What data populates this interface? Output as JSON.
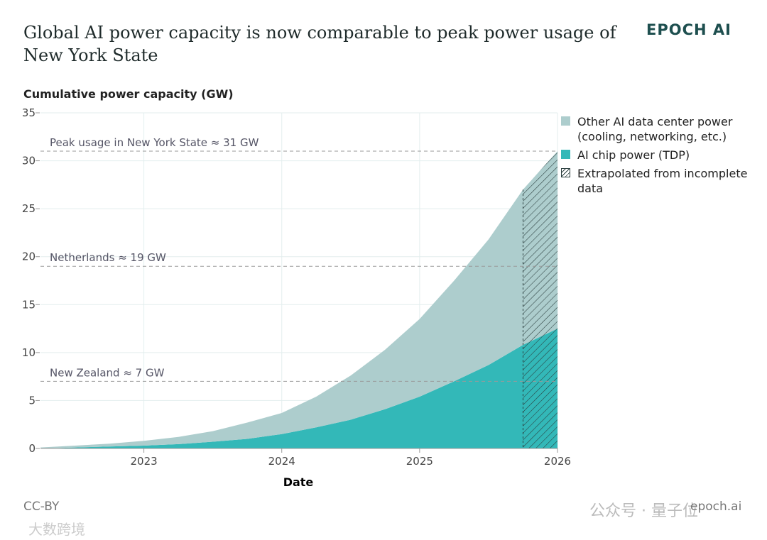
{
  "chart_data": {
    "type": "area",
    "title": "Global AI power capacity is now comparable to peak power usage of New York State",
    "brand": "EPOCH AI",
    "ylabel": "Cumulative power capacity (GW)",
    "xlabel": "Date",
    "x": [
      2022.25,
      2022.5,
      2022.75,
      2023.0,
      2023.25,
      2023.5,
      2023.75,
      2024.0,
      2024.25,
      2024.5,
      2024.75,
      2025.0,
      2025.25,
      2025.5,
      2025.75,
      2026.0
    ],
    "series": [
      {
        "name": "AI chip power (TDP)",
        "color": "#33b8b8",
        "values": [
          0,
          0.1,
          0.2,
          0.3,
          0.45,
          0.7,
          1.0,
          1.5,
          2.2,
          3.0,
          4.1,
          5.4,
          7.0,
          8.7,
          10.8,
          12.5
        ]
      },
      {
        "name": "Other AI data center power (cooling, networking, etc.)",
        "color": "#adcdcd",
        "values": [
          0.1,
          0.2,
          0.3,
          0.5,
          0.75,
          1.1,
          1.7,
          2.2,
          3.2,
          4.6,
          6.2,
          8.1,
          10.5,
          13.1,
          16.2,
          18.5
        ]
      }
    ],
    "extrapolated_label": "Extrapolated from incomplete data",
    "extrapolated_from": 2025.75,
    "reference_lines": [
      {
        "value": 31,
        "label": "Peak usage in New York State ≈ 31 GW"
      },
      {
        "value": 19,
        "label": "Netherlands ≈ 19 GW"
      },
      {
        "value": 7,
        "label": "New Zealand ≈ 7 GW"
      }
    ],
    "xlim": [
      2022.25,
      2026
    ],
    "xticks": [
      2023,
      2024,
      2025,
      2026
    ],
    "ylim": [
      0,
      35
    ],
    "yticks": [
      0,
      5,
      10,
      15,
      20,
      25,
      30,
      35
    ],
    "grid": true,
    "license": "CC-BY",
    "site": "epoch.ai",
    "watermarks": [
      "公众号 · 量子位",
      "大数跨境"
    ]
  }
}
